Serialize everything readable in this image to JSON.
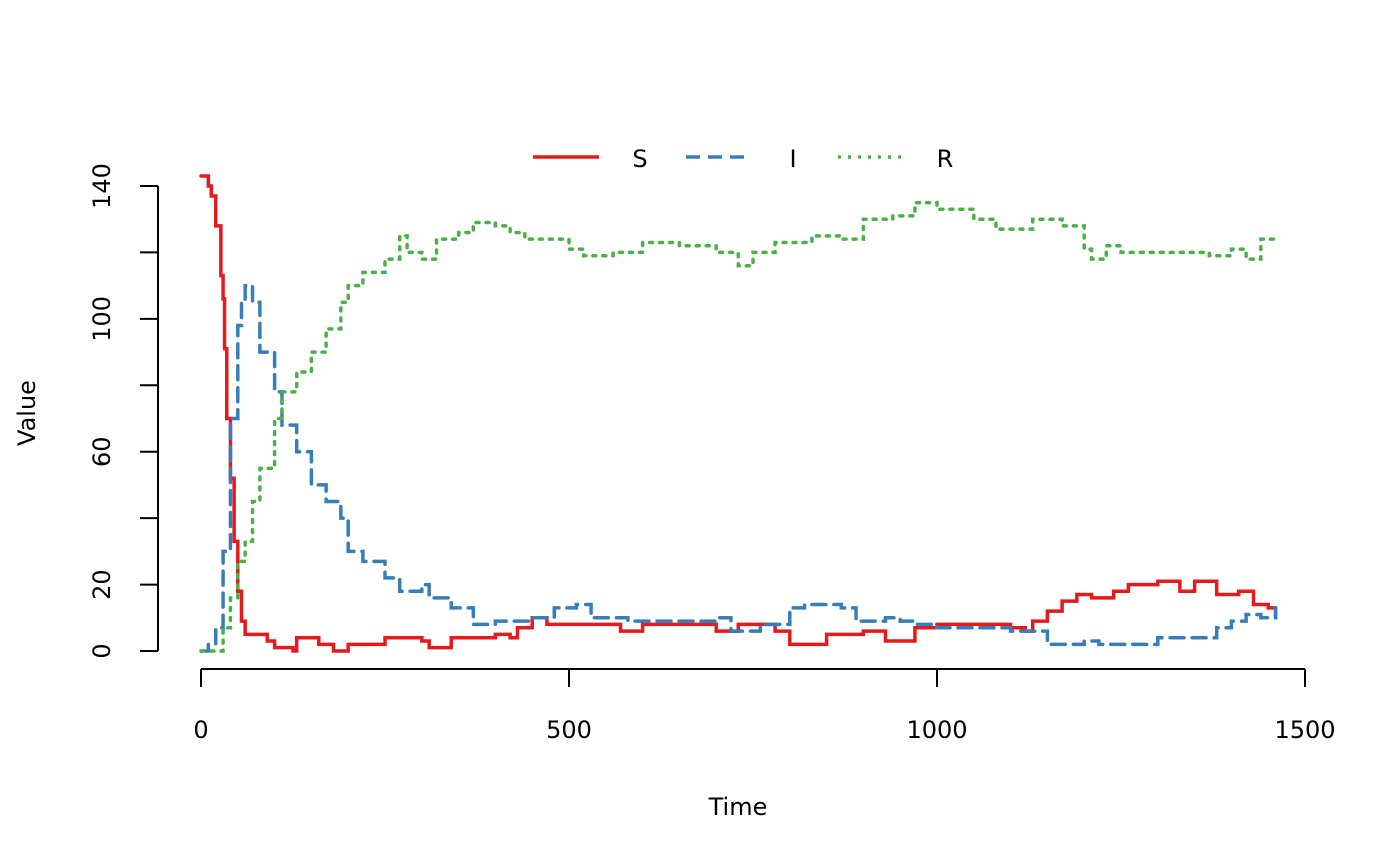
{
  "chart_data": {
    "type": "line",
    "title": "",
    "xlabel": "Time",
    "ylabel": "Value",
    "xlim": [
      0,
      1500
    ],
    "ylim": [
      0,
      140
    ],
    "x_ticks": [
      0,
      500,
      1000,
      1500
    ],
    "x_tick_labels": [
      "0",
      "500",
      "1000",
      "1500"
    ],
    "y_ticks": [
      0,
      20,
      40,
      60,
      80,
      100,
      120,
      140
    ],
    "y_tick_labels": [
      "0",
      "20",
      "",
      "60",
      "",
      "100",
      "",
      "140"
    ],
    "grid": false,
    "legend_position": "top",
    "series": [
      {
        "name": "S",
        "color": "#E41A1C",
        "style": "solid",
        "x": [
          0,
          10,
          14,
          20,
          27,
          30,
          32,
          35,
          40,
          45,
          50,
          55,
          60,
          90,
          100,
          125,
          130,
          150,
          160,
          180,
          200,
          250,
          300,
          310,
          330,
          340,
          400,
          420,
          430,
          450,
          470,
          500,
          550,
          570,
          600,
          650,
          700,
          730,
          780,
          800,
          850,
          900,
          930,
          970,
          1000,
          1050,
          1100,
          1120,
          1130,
          1150,
          1170,
          1190,
          1210,
          1240,
          1260,
          1300,
          1330,
          1350,
          1380,
          1410,
          1430,
          1450,
          1460
        ],
        "y": [
          143,
          140,
          137,
          128,
          113,
          106,
          91,
          70,
          52,
          33,
          18,
          9,
          5,
          3,
          1,
          0,
          4,
          4,
          2,
          0,
          2,
          4,
          3,
          1,
          1,
          4,
          5,
          4,
          7,
          10,
          8,
          8,
          8,
          6,
          8,
          8,
          6,
          8,
          6,
          2,
          5,
          6,
          3,
          7,
          8,
          8,
          7,
          6,
          9,
          12,
          15,
          17,
          16,
          18,
          20,
          21,
          18,
          21,
          17,
          18,
          14,
          13,
          10
        ]
      },
      {
        "name": "I",
        "color": "#377EB8",
        "style": "dashed",
        "x": [
          0,
          10,
          20,
          30,
          40,
          50,
          55,
          60,
          70,
          80,
          100,
          110,
          130,
          150,
          170,
          190,
          200,
          220,
          250,
          270,
          300,
          310,
          340,
          370,
          400,
          450,
          480,
          510,
          530,
          580,
          650,
          700,
          720,
          760,
          800,
          820,
          870,
          890,
          930,
          950,
          970,
          1000,
          1100,
          1130,
          1150,
          1200,
          1220,
          1260,
          1300,
          1350,
          1380,
          1400,
          1420,
          1440,
          1460
        ],
        "y": [
          0,
          2,
          7,
          30,
          70,
          98,
          105,
          110,
          105,
          90,
          78,
          68,
          60,
          50,
          45,
          40,
          30,
          27,
          22,
          18,
          20,
          16,
          13,
          8,
          9,
          10,
          13,
          14,
          10,
          9,
          9,
          10,
          6,
          8,
          13,
          14,
          13,
          9,
          10,
          9,
          8,
          7,
          6,
          6,
          2,
          3,
          2,
          2,
          4,
          4,
          7,
          9,
          11,
          10,
          13
        ]
      },
      {
        "name": "R",
        "color": "#4DAF4A",
        "style": "dotted",
        "x": [
          0,
          20,
          30,
          40,
          50,
          60,
          70,
          80,
          100,
          110,
          130,
          150,
          170,
          190,
          200,
          220,
          250,
          270,
          280,
          300,
          320,
          350,
          370,
          400,
          420,
          440,
          470,
          500,
          520,
          560,
          600,
          650,
          700,
          730,
          750,
          780,
          830,
          870,
          900,
          940,
          970,
          1000,
          1050,
          1080,
          1130,
          1170,
          1200,
          1210,
          1230,
          1250,
          1300,
          1340,
          1370,
          1400,
          1420,
          1440,
          1460
        ],
        "y": [
          0,
          0,
          7,
          16,
          27,
          33,
          45,
          55,
          70,
          78,
          84,
          90,
          97,
          105,
          110,
          114,
          118,
          125,
          120,
          118,
          124,
          126,
          129,
          128,
          126,
          124,
          124,
          121,
          119,
          120,
          123,
          122,
          120,
          116,
          120,
          123,
          125,
          124,
          130,
          131,
          135,
          133,
          130,
          127,
          130,
          128,
          121,
          118,
          122,
          120,
          120,
          120,
          119,
          121,
          118,
          124,
          123
        ]
      }
    ]
  }
}
